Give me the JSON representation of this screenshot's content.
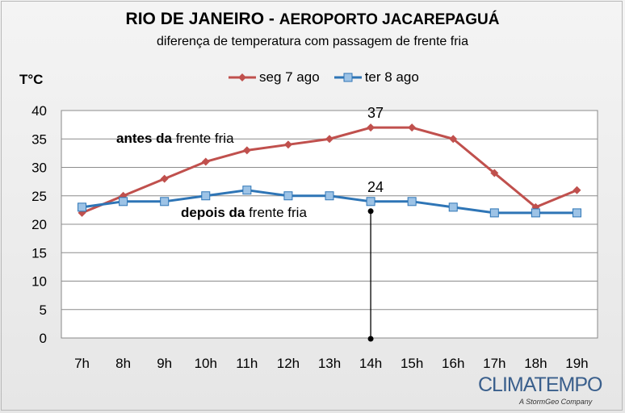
{
  "header": {
    "title_city": "RIO DE JANEIRO",
    "title_sep": "-",
    "title_station": "AEROPORTO JACAREPAGUÁ",
    "subtitle": "diferença de temperatura com passagem de frente fria"
  },
  "brand": {
    "name": "CLIMATEMPO",
    "tagline": "A StormGeo Company"
  },
  "chart_data": {
    "type": "line",
    "ylabel": "T°C",
    "ylim": [
      0,
      40
    ],
    "yticks": [
      "0",
      "5",
      "10",
      "15",
      "20",
      "25",
      "30",
      "35",
      "40"
    ],
    "categories": [
      "7h",
      "8h",
      "9h",
      "10h",
      "11h",
      "12h",
      "13h",
      "14h",
      "15h",
      "16h",
      "17h",
      "18h",
      "19h"
    ],
    "grid": true,
    "legend_position": "top",
    "series": [
      {
        "name": "seg 7 ago",
        "color": "#c0504d",
        "marker": "diamond",
        "values": [
          22,
          25,
          28,
          31,
          33,
          34,
          35,
          37,
          37,
          35,
          29,
          23,
          26
        ]
      },
      {
        "name": "ter 8 ago",
        "color": "#2e75b6",
        "marker_fill": "#9dc3e6",
        "marker": "square",
        "values": [
          23,
          24,
          24,
          25,
          26,
          25,
          25,
          24,
          24,
          23,
          22,
          22,
          22
        ]
      }
    ],
    "annotations": [
      {
        "bold": "antes da",
        "rest": " frente fria"
      },
      {
        "bold": "depois da",
        "rest": " frente fria"
      }
    ],
    "data_labels": [
      {
        "category": "14h",
        "series": 0,
        "text": "37"
      },
      {
        "category": "14h",
        "series": 1,
        "text": "24"
      }
    ]
  }
}
